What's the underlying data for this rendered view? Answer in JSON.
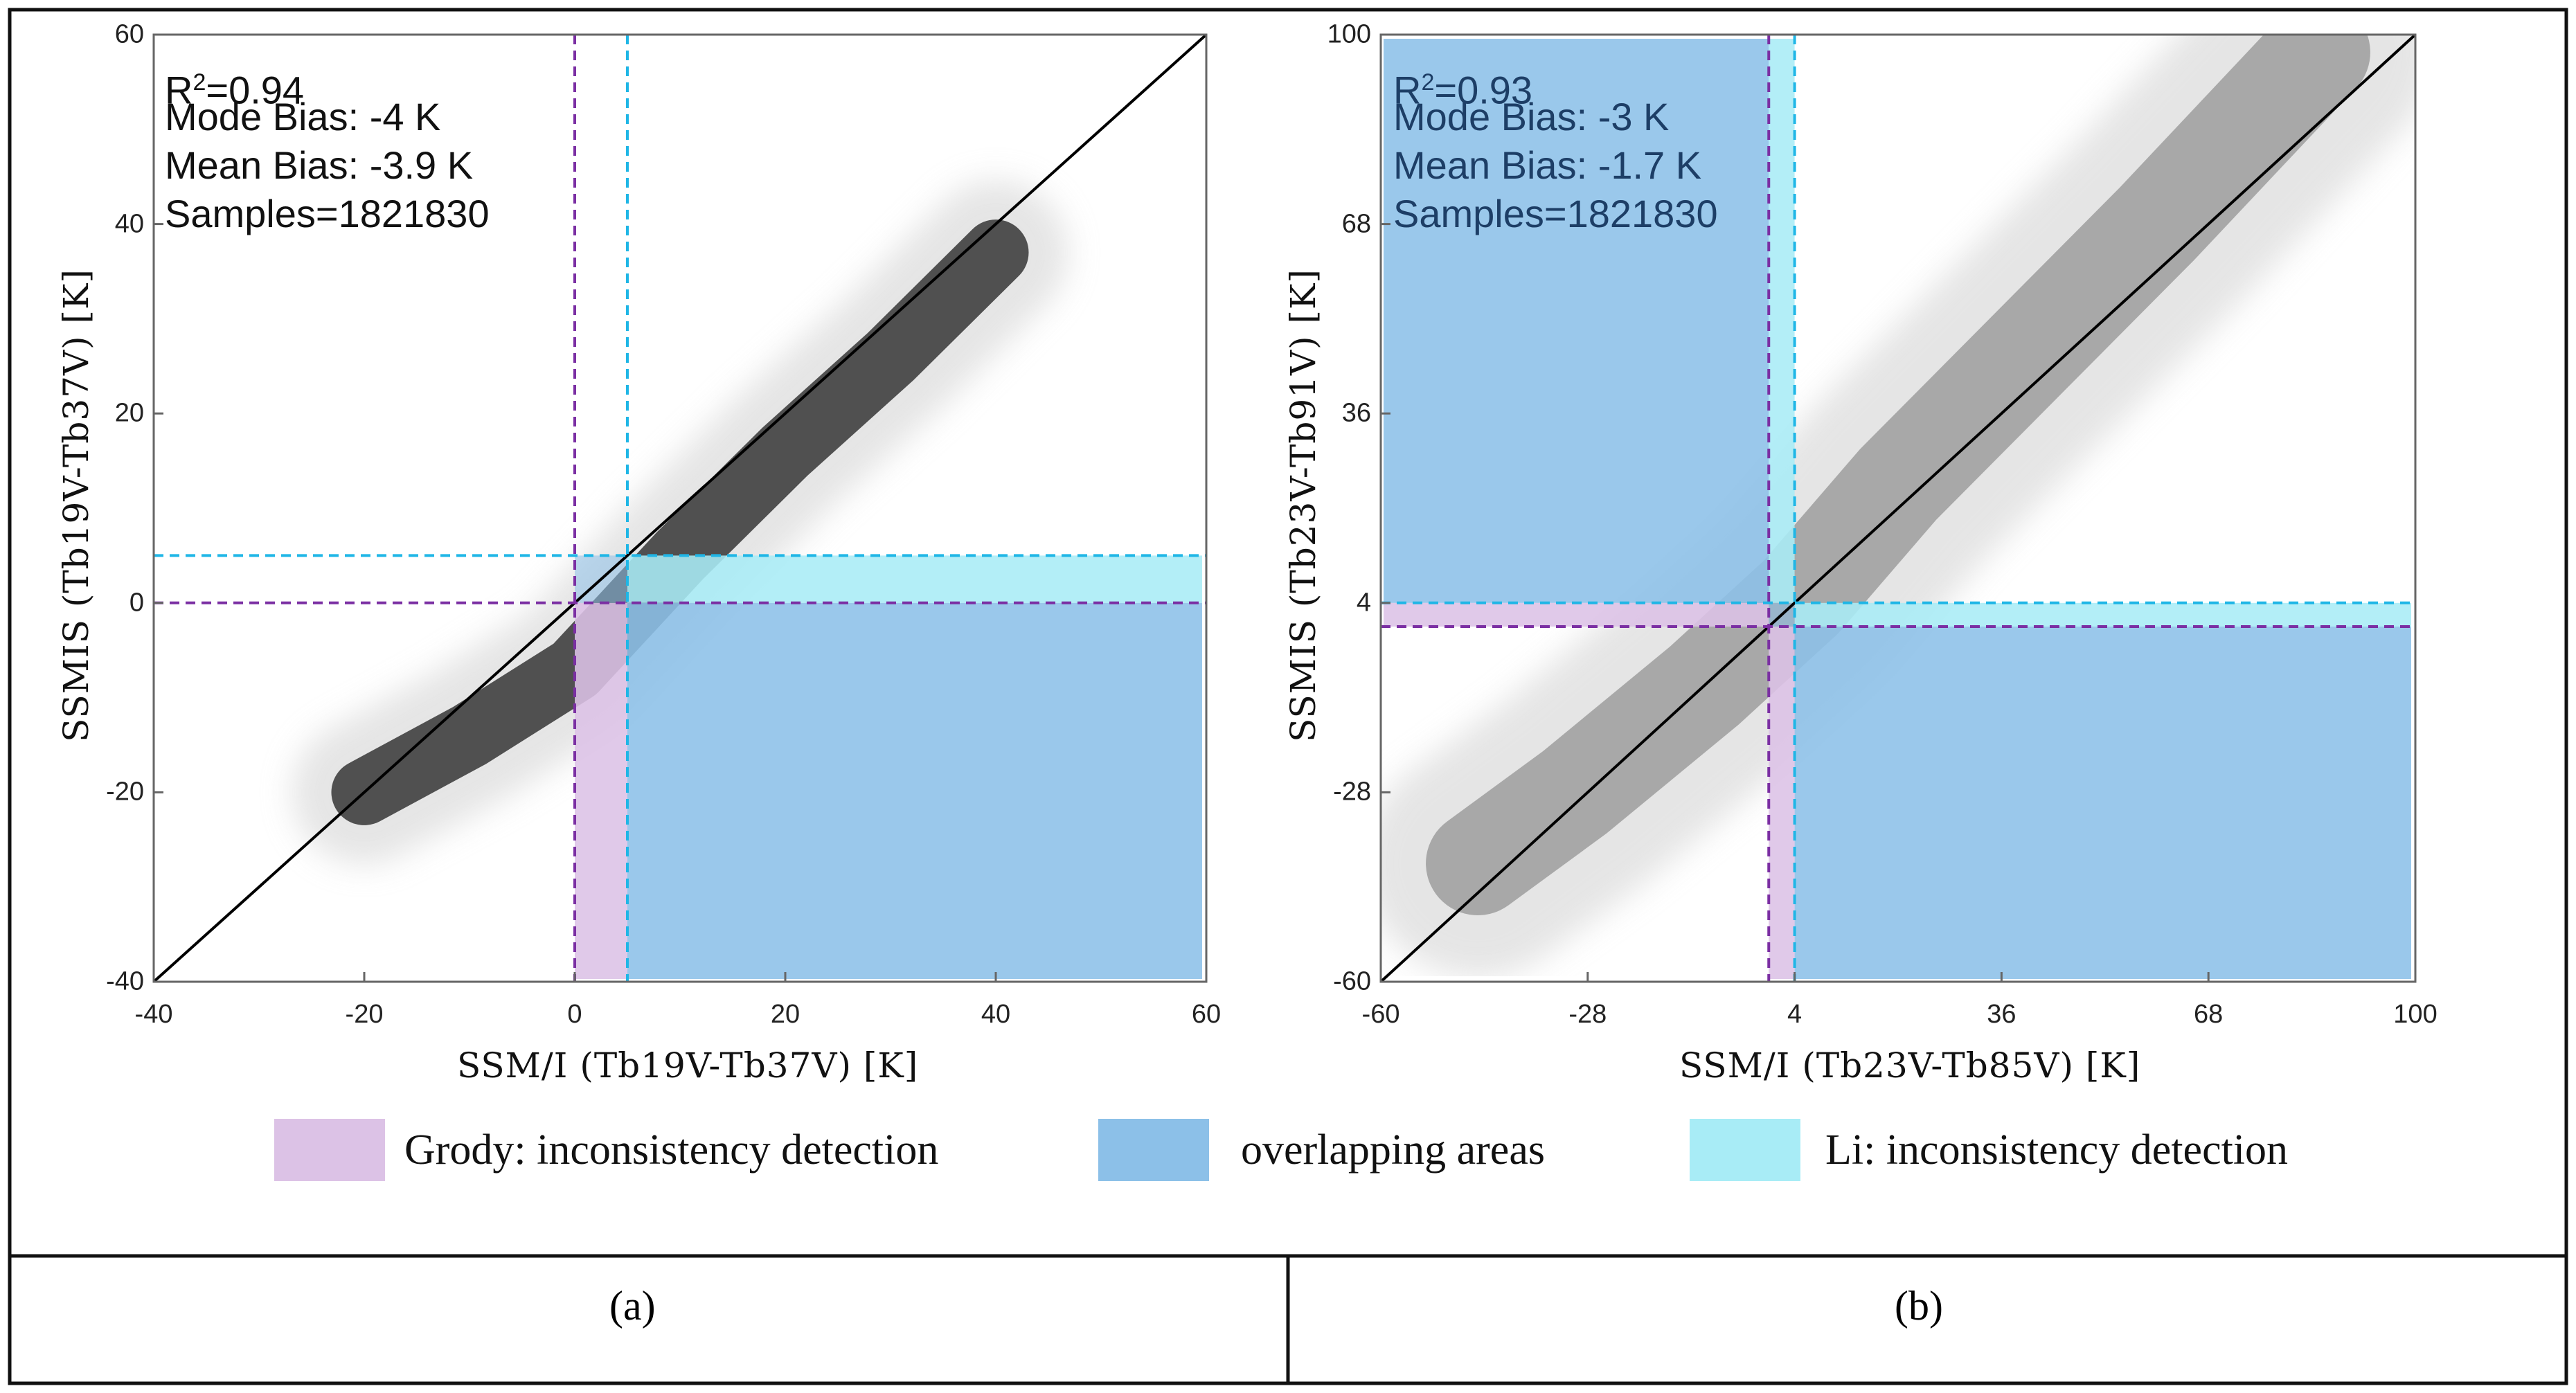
{
  "colors": {
    "grody": "#dcc2e6",
    "overlap": "#8cc0e8",
    "li": "#a8ecf6",
    "grody_line": "#7b2fa3",
    "li_line": "#1fb6e6",
    "scatter_a": "#505050",
    "scatter_b": "#a8a8a8"
  },
  "legend": [
    {
      "key": "grody",
      "label": "Grody: inconsistency detection"
    },
    {
      "key": "overlap",
      "label": "overlapping areas"
    },
    {
      "key": "li",
      "label": "Li: inconsistency detection"
    }
  ],
  "captions": {
    "a": "(a)",
    "b": "(b)"
  },
  "chart_data": [
    {
      "id": "a",
      "type": "scatter",
      "xlabel": "SSM/I (Tb19V-Tb37V) [K]",
      "ylabel": "SSMIS (Tb19V-Tb37V) [K]",
      "xlim": [
        -40,
        60
      ],
      "ylim": [
        -40,
        60
      ],
      "xticks": [
        -40,
        -20,
        0,
        20,
        40,
        60
      ],
      "yticks": [
        -40,
        -20,
        0,
        20,
        40,
        60
      ],
      "grody_threshold": 0,
      "li_threshold": 5,
      "one_to_one_line": true,
      "stats": {
        "r2_label": "R",
        "r2_sup": "2",
        "r2_value": "=0.94",
        "mode_bias": "Mode Bias: -4 K",
        "mean_bias": "Mean Bias: -3.9 K",
        "samples": "Samples=1821830"
      },
      "point_cloud": [
        [
          -20,
          -20
        ],
        [
          -10,
          -14
        ],
        [
          0,
          -7
        ],
        [
          10,
          5
        ],
        [
          20,
          16
        ],
        [
          30,
          26
        ],
        [
          40,
          37
        ]
      ]
    },
    {
      "id": "b",
      "type": "scatter",
      "xlabel": "SSM/I (Tb23V-Tb85V) [K]",
      "ylabel": "SSMIS (Tb23V-Tb91V) [K]",
      "xlim": [
        -60,
        100
      ],
      "ylim": [
        -60,
        100
      ],
      "xticks": [
        -60,
        -28,
        4,
        36,
        68,
        100
      ],
      "yticks": [
        -60,
        -28,
        4,
        36,
        68,
        100
      ],
      "xtick_labels": [
        "-60",
        "-28",
        "4",
        "36",
        "68",
        "100"
      ],
      "ytick_labels": [
        "-60",
        "-28",
        "4",
        "36",
        "68",
        "100"
      ],
      "grody_threshold": 0,
      "li_threshold": 4,
      "one_to_one_line": true,
      "stats": {
        "r2_label": "R",
        "r2_sup": "2",
        "r2_value": "=0.93",
        "mode_bias": "Mode Bias: -3 K",
        "mean_bias": "Mean Bias: -1.7 K",
        "samples": "Samples=1821830"
      },
      "point_cloud": [
        [
          -45,
          -40
        ],
        [
          -30,
          -28
        ],
        [
          -10,
          -10
        ],
        [
          5,
          5
        ],
        [
          20,
          24
        ],
        [
          40,
          46
        ],
        [
          60,
          68
        ],
        [
          85,
          97
        ]
      ]
    }
  ]
}
